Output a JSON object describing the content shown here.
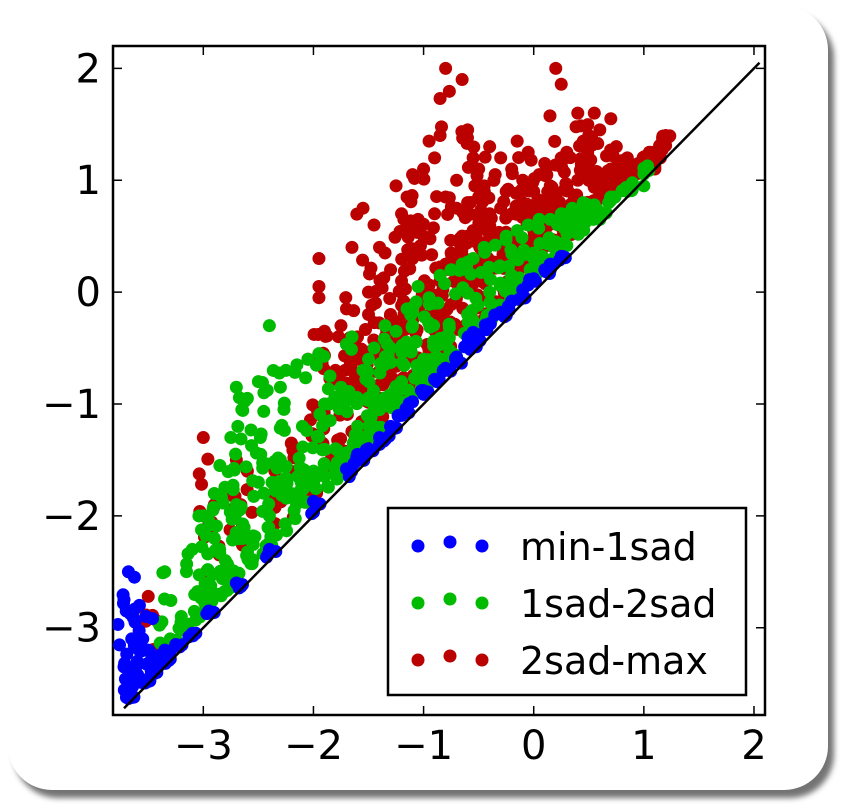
{
  "chart_data": {
    "type": "scatter",
    "title": "",
    "xlabel": "",
    "ylabel": "",
    "xlim": [
      -3.82,
      2.1
    ],
    "ylim": [
      -3.78,
      2.2
    ],
    "xticks": [
      -3,
      -2,
      -1,
      0,
      1,
      2
    ],
    "yticks": [
      -3,
      -2,
      -1,
      0,
      1,
      2
    ],
    "xtick_labels": [
      "−3",
      "−2",
      "−1",
      "0",
      "1",
      "2"
    ],
    "ytick_labels": [
      "−3",
      "−2",
      "−1",
      "0",
      "1",
      "2"
    ],
    "reference_line": {
      "from": [
        -3.72,
        -3.72
      ],
      "to": [
        2.05,
        2.05
      ],
      "color": "#000000"
    },
    "legend_position": "lower-right",
    "grid": false,
    "series": [
      {
        "name": "min-1sad",
        "color": "#0000ff",
        "points": [
          [
            -3.72,
            -2.75
          ],
          [
            -3.68,
            -2.5
          ],
          [
            -3.7,
            -2.85
          ],
          [
            -3.62,
            -2.95
          ],
          [
            -3.65,
            -3.1
          ],
          [
            -3.72,
            -3.35
          ],
          [
            -3.68,
            -3.45
          ],
          [
            -3.6,
            -3.3
          ],
          [
            -3.55,
            -3.1
          ],
          [
            -3.5,
            -3.2
          ],
          [
            -3.58,
            -2.8
          ],
          [
            -3.52,
            -2.9
          ],
          [
            -3.45,
            -3.25
          ],
          [
            -3.4,
            -3.3
          ],
          [
            -3.35,
            -3.2
          ],
          [
            -3.25,
            -3.15
          ],
          [
            -3.1,
            -3.05
          ],
          [
            -2.95,
            -2.85
          ],
          [
            -2.7,
            -2.6
          ],
          [
            -2.4,
            -2.3
          ],
          [
            -2.0,
            -1.87
          ],
          [
            -1.7,
            -1.58
          ],
          [
            -1.6,
            -1.45
          ],
          [
            -1.5,
            -1.4
          ],
          [
            -1.4,
            -1.3
          ],
          [
            -1.3,
            -1.2
          ],
          [
            -1.2,
            -1.1
          ],
          [
            -1.1,
            -0.98
          ],
          [
            -1.0,
            -0.88
          ],
          [
            -0.9,
            -0.78
          ],
          [
            -0.8,
            -0.68
          ],
          [
            -0.7,
            -0.58
          ],
          [
            -0.6,
            -0.48
          ],
          [
            -0.55,
            -0.36
          ],
          [
            -0.5,
            -0.38
          ],
          [
            -0.4,
            -0.28
          ],
          [
            -0.3,
            -0.18
          ],
          [
            -0.2,
            -0.08
          ],
          [
            -0.1,
            0.02
          ],
          [
            0.0,
            0.12
          ],
          [
            0.1,
            0.2
          ],
          [
            0.15,
            0.25
          ],
          [
            0.25,
            0.32
          ],
          [
            -3.63,
            -3.62
          ],
          [
            -3.5,
            -3.48
          ],
          [
            -3.3,
            -3.28
          ]
        ]
      },
      {
        "name": "1sad-2sad",
        "color": "#00bb00",
        "points": [
          [
            -3.35,
            -2.5
          ],
          [
            -3.1,
            -2.3
          ],
          [
            -3.0,
            -2.0
          ],
          [
            -2.9,
            -1.8
          ],
          [
            -2.85,
            -1.55
          ],
          [
            -2.75,
            -1.3
          ],
          [
            -2.65,
            -1.05
          ],
          [
            -2.7,
            -0.85
          ],
          [
            -2.6,
            -0.95
          ],
          [
            -2.5,
            -0.8
          ],
          [
            -2.45,
            -0.9
          ],
          [
            -2.4,
            -0.3
          ],
          [
            -2.3,
            -0.85
          ],
          [
            -2.25,
            -0.7
          ],
          [
            -2.15,
            -0.65
          ],
          [
            -2.05,
            -0.6
          ],
          [
            -1.95,
            -0.55
          ],
          [
            -1.85,
            -0.75
          ],
          [
            -1.75,
            -0.85
          ],
          [
            -1.65,
            -0.4
          ],
          [
            -1.55,
            -0.7
          ],
          [
            -1.45,
            -0.5
          ],
          [
            -1.35,
            -0.3
          ],
          [
            -1.25,
            -0.35
          ],
          [
            -1.15,
            -0.15
          ],
          [
            -1.05,
            0.05
          ],
          [
            -0.95,
            -0.05
          ],
          [
            -0.85,
            0.15
          ],
          [
            -0.75,
            0.2
          ],
          [
            -0.65,
            0.25
          ],
          [
            -0.55,
            0.3
          ],
          [
            -0.45,
            0.4
          ],
          [
            -0.35,
            0.42
          ],
          [
            -0.25,
            0.5
          ],
          [
            -0.15,
            0.55
          ],
          [
            -0.05,
            0.6
          ],
          [
            0.05,
            0.65
          ],
          [
            0.15,
            0.65
          ],
          [
            0.25,
            0.7
          ],
          [
            0.35,
            0.75
          ],
          [
            0.45,
            0.8
          ],
          [
            0.55,
            0.78
          ],
          [
            0.7,
            0.85
          ],
          [
            0.85,
            0.9
          ],
          [
            1.0,
            0.95
          ],
          [
            -3.3,
            -3.1
          ],
          [
            -3.2,
            -2.9
          ],
          [
            -3.05,
            -2.7
          ],
          [
            -2.95,
            -2.6
          ],
          [
            -2.8,
            -2.4
          ],
          [
            -2.6,
            -2.2
          ],
          [
            -2.4,
            -2.0
          ],
          [
            -2.2,
            -1.8
          ],
          [
            -2.0,
            -1.6
          ],
          [
            -1.8,
            -1.4
          ],
          [
            -1.6,
            -1.2
          ],
          [
            -1.4,
            -1.0
          ],
          [
            -1.2,
            -0.8
          ],
          [
            -1.0,
            -0.6
          ],
          [
            -0.8,
            -0.4
          ],
          [
            -0.6,
            -0.2
          ],
          [
            -0.4,
            0.0
          ],
          [
            -0.2,
            0.15
          ],
          [
            0.0,
            0.3
          ],
          [
            0.2,
            0.45
          ],
          [
            0.4,
            0.55
          ],
          [
            0.6,
            0.65
          ],
          [
            -2.9,
            -2.2
          ],
          [
            -2.7,
            -1.9
          ],
          [
            -2.5,
            -1.7
          ],
          [
            -2.3,
            -1.5
          ],
          [
            -2.1,
            -1.2
          ],
          [
            -1.9,
            -1.0
          ],
          [
            -1.7,
            -0.9
          ],
          [
            -1.5,
            -0.6
          ],
          [
            -1.3,
            -0.5
          ],
          [
            -1.1,
            -0.3
          ],
          [
            -0.9,
            -0.1
          ]
        ]
      },
      {
        "name": "2sad-max",
        "color": "#bb0000",
        "points": [
          [
            -3.5,
            -2.72
          ],
          [
            -3.0,
            -1.3
          ],
          [
            -2.95,
            -2.05
          ],
          [
            -2.9,
            -1.9
          ],
          [
            -2.7,
            -1.5
          ],
          [
            -2.6,
            -1.6
          ],
          [
            -2.35,
            -1.6
          ],
          [
            -2.2,
            -1.35
          ],
          [
            -2.05,
            -0.6
          ],
          [
            -1.95,
            -0.05
          ],
          [
            -1.95,
            0.05
          ],
          [
            -1.95,
            0.3
          ],
          [
            -1.9,
            -0.35
          ],
          [
            -1.7,
            -0.15
          ],
          [
            -1.75,
            -0.3
          ],
          [
            -1.6,
            -0.6
          ],
          [
            -1.65,
            0.4
          ],
          [
            -1.5,
            -0.2
          ],
          [
            -1.55,
            0.75
          ],
          [
            -1.5,
            0.0
          ],
          [
            -1.45,
            0.6
          ],
          [
            -1.4,
            0.4
          ],
          [
            -1.35,
            0.35
          ],
          [
            -1.3,
            0.2
          ],
          [
            -1.25,
            0.95
          ],
          [
            -1.2,
            0.7
          ],
          [
            -1.15,
            0.85
          ],
          [
            -1.1,
            1.05
          ],
          [
            -1.05,
            0.65
          ],
          [
            -1.0,
            1.1
          ],
          [
            -0.95,
            1.35
          ],
          [
            -0.9,
            1.2
          ],
          [
            -0.85,
            1.4
          ],
          [
            -0.8,
            2.0
          ],
          [
            -0.7,
            1.0
          ],
          [
            -0.65,
            1.9
          ],
          [
            -0.6,
            1.45
          ],
          [
            -0.55,
            1.2
          ],
          [
            -0.5,
            1.1
          ],
          [
            -0.45,
            0.95
          ],
          [
            -0.4,
            1.3
          ],
          [
            -0.35,
            1.05
          ],
          [
            -0.3,
            1.2
          ],
          [
            -0.25,
            0.9
          ],
          [
            -0.2,
            1.1
          ],
          [
            -0.15,
            1.35
          ],
          [
            -0.1,
            1.0
          ],
          [
            -0.05,
            1.25
          ],
          [
            0.0,
            0.9
          ],
          [
            0.05,
            1.05
          ],
          [
            0.1,
            1.15
          ],
          [
            0.15,
            0.95
          ],
          [
            0.2,
            2.0
          ],
          [
            0.25,
            1.2
          ],
          [
            0.3,
            1.25
          ],
          [
            0.4,
            1.6
          ],
          [
            0.45,
            1.35
          ],
          [
            0.5,
            1.4
          ],
          [
            0.55,
            1.6
          ],
          [
            0.6,
            1.45
          ],
          [
            0.7,
            1.55
          ],
          [
            0.75,
            1.3
          ],
          [
            0.85,
            1.2
          ],
          [
            0.95,
            1.15
          ],
          [
            1.05,
            1.25
          ],
          [
            1.1,
            1.1
          ],
          [
            1.2,
            1.4
          ],
          [
            1.15,
            1.2
          ],
          [
            -1.4,
            -0.55
          ],
          [
            -1.3,
            -0.2
          ],
          [
            -1.2,
            0.1
          ],
          [
            -1.1,
            0.3
          ],
          [
            -1.0,
            0.5
          ],
          [
            -0.9,
            0.7
          ],
          [
            -0.8,
            0.85
          ],
          [
            -0.7,
            0.75
          ],
          [
            -0.6,
            0.8
          ],
          [
            -0.5,
            0.85
          ],
          [
            -0.4,
            0.7
          ],
          [
            -0.3,
            0.75
          ],
          [
            -0.2,
            0.7
          ],
          [
            -0.1,
            0.8
          ],
          [
            0.0,
            0.75
          ],
          [
            0.1,
            0.8
          ],
          [
            0.2,
            0.85
          ],
          [
            0.3,
            0.95
          ],
          [
            0.4,
            1.0
          ],
          [
            0.5,
            1.0
          ],
          [
            0.6,
            1.05
          ],
          [
            0.7,
            1.1
          ],
          [
            0.8,
            1.1
          ],
          [
            0.9,
            1.05
          ],
          [
            1.0,
            1.15
          ],
          [
            -1.8,
            -0.7
          ],
          [
            -1.6,
            -0.4
          ],
          [
            -1.2,
            -0.3
          ],
          [
            -1.0,
            0.0
          ],
          [
            -0.8,
            0.25
          ],
          [
            -0.6,
            0.45
          ],
          [
            -0.4,
            0.45
          ],
          [
            -0.2,
            0.5
          ],
          [
            0.0,
            0.55
          ],
          [
            -1.5,
            -0.85
          ],
          [
            -1.4,
            -0.95
          ],
          [
            -1.1,
            -0.25
          ],
          [
            -0.95,
            -0.05
          ],
          [
            -0.85,
            0.1
          ],
          [
            -0.75,
            0.35
          ],
          [
            -0.65,
            0.5
          ],
          [
            -0.55,
            0.55
          ],
          [
            -0.45,
            0.6
          ]
        ]
      }
    ]
  }
}
